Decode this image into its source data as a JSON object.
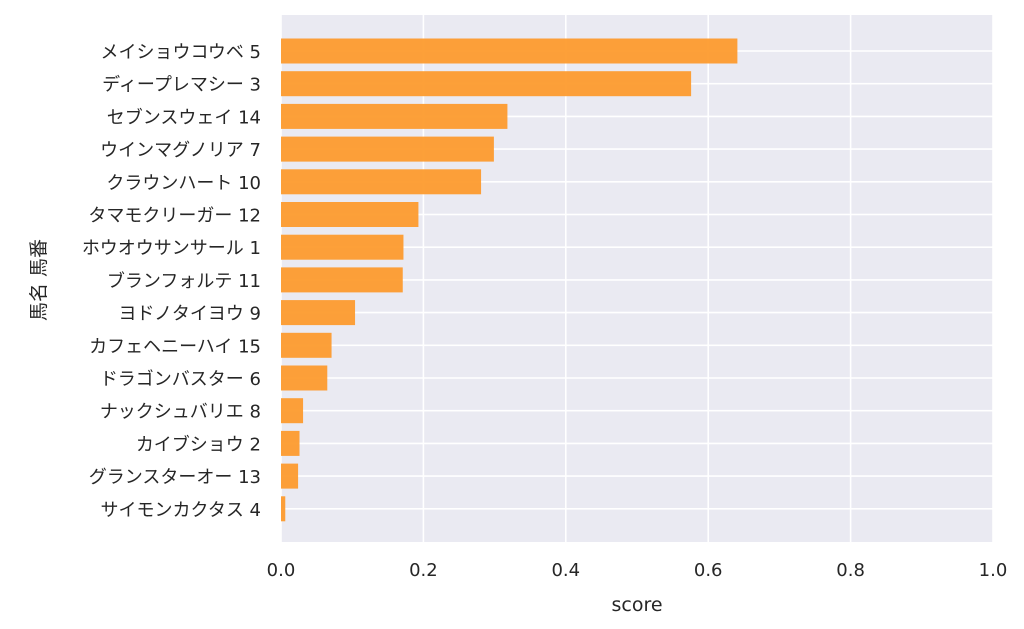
{
  "chart_data": {
    "type": "bar",
    "orientation": "horizontal",
    "categories": [
      "メイショウコウベ 5",
      "ディープレマシー 3",
      "セブンスウェイ 14",
      "ウインマグノリア 7",
      "クラウンハート 10",
      "タマモクリーガー 12",
      "ホウオウサンサール 1",
      "ブランフォルテ 11",
      "ヨドノタイヨウ 9",
      "カフェヘニーハイ 15",
      "ドラゴンバスター 6",
      "ナックシュバリエ 8",
      "カイブショウ 2",
      "グランスターオー 13",
      "サイモンカクタス 4"
    ],
    "values": [
      0.641,
      0.576,
      0.318,
      0.299,
      0.281,
      0.193,
      0.172,
      0.171,
      0.104,
      0.071,
      0.065,
      0.031,
      0.026,
      0.024,
      0.006
    ],
    "xlabel": "score",
    "ylabel": "馬名 馬番",
    "xlim": [
      0,
      1.0
    ],
    "xticks": [
      "0.0",
      "0.2",
      "0.4",
      "0.6",
      "0.8",
      "1.0"
    ],
    "grid": true,
    "bar_color": "#fd9b2e",
    "background_color": "#eaeaf2",
    "grid_color": "#ffffff"
  }
}
